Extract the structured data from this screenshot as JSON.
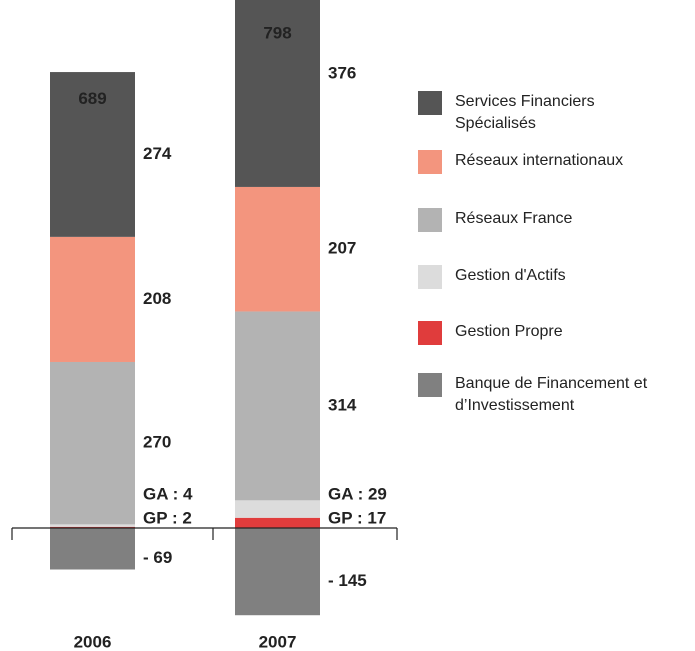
{
  "chart_data": {
    "type": "stacked_bar",
    "categories": [
      "2006",
      "2007"
    ],
    "totals": [
      689,
      798
    ],
    "series": [
      {
        "name": "Services Financiers Spécialisés",
        "color": "#555555",
        "values": [
          274,
          376
        ]
      },
      {
        "name": "Réseaux internationaux",
        "color": "#f3957e",
        "values": [
          208,
          207
        ]
      },
      {
        "name": "Réseaux France",
        "color": "#b3b3b3",
        "values": [
          270,
          314
        ]
      },
      {
        "name": "Gestion d'Actifs",
        "color": "#dcdcdc",
        "values": [
          4,
          29
        ],
        "value_labels": [
          "GA : 4",
          "GA : 29"
        ]
      },
      {
        "name": "Gestion Propre",
        "color": "#e03c3c",
        "values": [
          2,
          17
        ],
        "value_labels": [
          "GP : 2",
          "GP : 17"
        ]
      },
      {
        "name": "Banque de Financement et d’Investissement",
        "color": "#808080",
        "values": [
          -69,
          -145
        ],
        "value_labels": [
          "- 69",
          "- 145"
        ]
      }
    ]
  }
}
